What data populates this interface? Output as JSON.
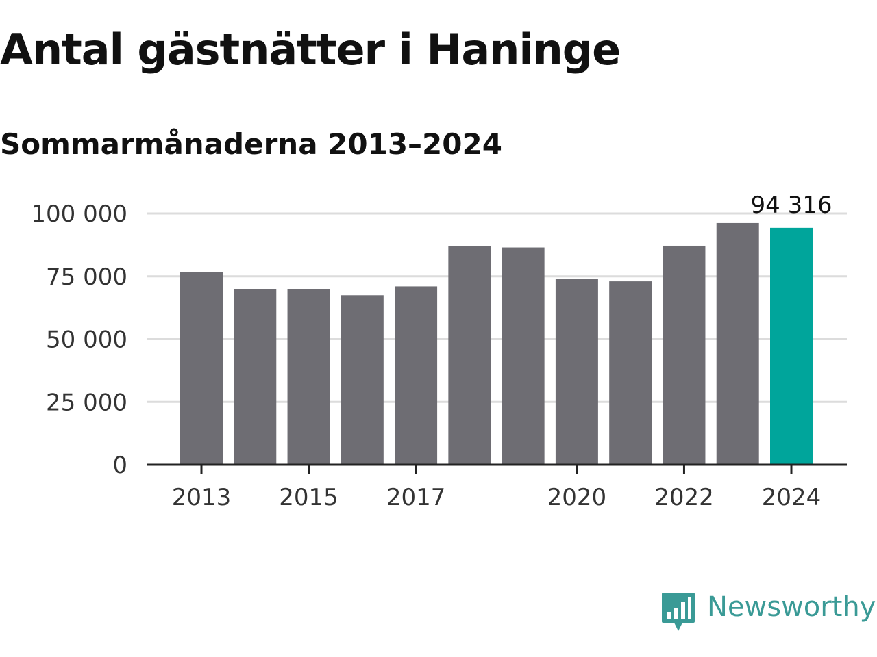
{
  "header": {
    "title": "Antal gästnätter i Haninge",
    "subtitle": "Sommarmånaderna 2013–2024"
  },
  "brand": {
    "name": "Newsworthy",
    "icon": "bar-chart-speech-bubble-icon",
    "color": "#3a9a96"
  },
  "colors": {
    "bar": "#6e6d73",
    "highlight": "#00a59b",
    "grid": "#dcdcdc",
    "axis": "#222222"
  },
  "chart_data": {
    "type": "bar",
    "categories": [
      "2013",
      "2014",
      "2015",
      "2016",
      "2017",
      "2018",
      "2019",
      "2020",
      "2021",
      "2022",
      "2023",
      "2024"
    ],
    "values": [
      76800,
      70000,
      70000,
      67500,
      71000,
      87000,
      86500,
      74000,
      73000,
      87200,
      96200,
      94316
    ],
    "title": "Antal gästnätter i Haninge",
    "subtitle": "Sommarmånaderna 2013–2024",
    "xlabel": "",
    "ylabel": "",
    "ylim": [
      0,
      100000
    ],
    "yticks": [
      0,
      25000,
      50000,
      75000,
      100000
    ],
    "ytick_labels": [
      "0",
      "25 000",
      "50 000",
      "75 000",
      "100 000"
    ],
    "xtick_labels": [
      "2013",
      "2015",
      "2017",
      "2020",
      "2022",
      "2024"
    ],
    "highlight_category": "2024",
    "data_labels": [
      {
        "category": "2024",
        "text": "94 316"
      }
    ],
    "grid": true,
    "legend": "none"
  }
}
